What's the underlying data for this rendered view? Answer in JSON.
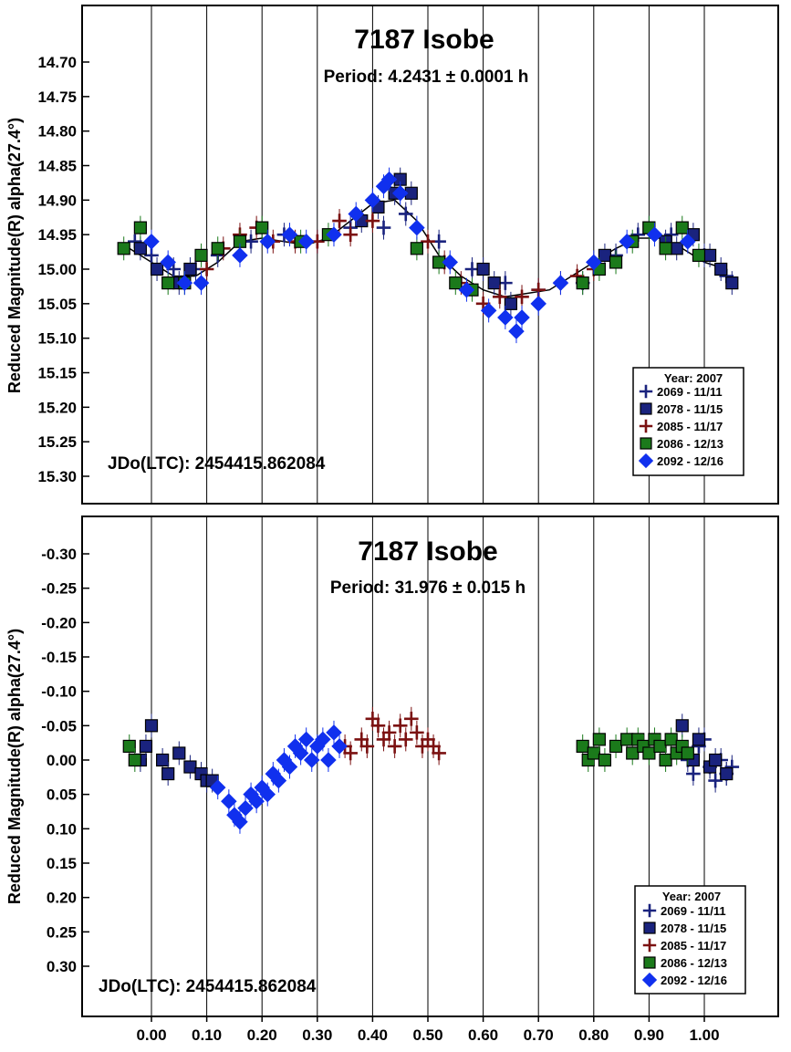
{
  "chart_data": [
    {
      "type": "scatter",
      "title": "7187 Isobe",
      "subtitle": "Period: 4.2431 ± 0.0001 h",
      "ylabel": "Reduced Magnitude(R) alpha(27.4°)",
      "xlabel": "",
      "ylim": [
        14.65,
        15.35
      ],
      "y_inverted": true,
      "y_ticks": [
        "14.70",
        "14.75",
        "14.80",
        "14.85",
        "14.90",
        "14.95",
        "15.00",
        "15.05",
        "15.10",
        "15.15",
        "15.20",
        "15.25",
        "15.30"
      ],
      "annotation": "JDo(LTC): 2454415.862084",
      "legend_title": "Year: 2007",
      "legend_position": "bottom-right",
      "curve": {
        "x": [
          -0.04,
          0.0,
          0.04,
          0.08,
          0.12,
          0.16,
          0.2,
          0.24,
          0.28,
          0.32,
          0.36,
          0.4,
          0.44,
          0.48,
          0.52,
          0.56,
          0.6,
          0.64,
          0.68,
          0.72,
          0.76,
          0.8,
          0.84,
          0.88,
          0.92,
          0.96,
          1.0,
          1.04
        ],
        "y": [
          14.97,
          14.99,
          15.01,
          15.01,
          14.99,
          14.96,
          14.955,
          14.96,
          14.965,
          14.955,
          14.93,
          14.905,
          14.9,
          14.93,
          14.98,
          15.01,
          15.03,
          15.04,
          15.035,
          15.03,
          15.01,
          14.99,
          14.97,
          14.955,
          14.955,
          14.97,
          14.99,
          15.0
        ]
      },
      "series": [
        {
          "name": "2069 - 11/11",
          "marker": "plus",
          "color": "#1a237e",
          "x": [
            -0.03,
            0.0,
            0.04,
            0.08,
            0.12,
            0.18,
            0.24,
            0.3,
            0.36,
            0.42,
            0.46,
            0.52,
            0.58,
            0.64,
            0.7,
            0.78,
            0.84,
            0.88,
            0.94,
            1.0,
            1.04
          ],
          "y": [
            14.96,
            14.98,
            15.0,
            15.0,
            14.98,
            14.96,
            14.95,
            14.96,
            14.94,
            14.94,
            14.92,
            14.96,
            15.0,
            15.02,
            15.03,
            15.02,
            14.98,
            14.95,
            14.95,
            14.98,
            15.01
          ]
        },
        {
          "name": "2078 - 11/15",
          "marker": "square",
          "color": "#1a237e",
          "x": [
            -0.02,
            0.01,
            0.05,
            0.07,
            0.38,
            0.41,
            0.44,
            0.45,
            0.47,
            0.6,
            0.62,
            0.65,
            0.82,
            0.9,
            0.93,
            0.95,
            0.98,
            1.01,
            1.03,
            1.05
          ],
          "y": [
            14.97,
            15.0,
            15.02,
            15.0,
            14.93,
            14.91,
            14.89,
            14.87,
            14.89,
            15.0,
            15.02,
            15.05,
            14.98,
            14.94,
            14.96,
            14.97,
            14.95,
            14.98,
            15.0,
            15.02
          ]
        },
        {
          "name": "2085 - 11/17",
          "marker": "plus",
          "color": "#7b1111",
          "x": [
            0.1,
            0.13,
            0.16,
            0.19,
            0.22,
            0.26,
            0.3,
            0.34,
            0.36,
            0.4,
            0.5,
            0.53,
            0.56,
            0.6,
            0.63,
            0.67,
            0.7,
            0.74,
            0.77,
            0.8
          ],
          "y": [
            15.0,
            14.97,
            14.95,
            14.94,
            14.96,
            14.96,
            14.96,
            14.93,
            14.95,
            14.93,
            14.96,
            14.99,
            15.02,
            15.05,
            15.04,
            15.04,
            15.03,
            15.02,
            15.01,
            15.0
          ]
        },
        {
          "name": "2086 - 12/13",
          "marker": "square",
          "color": "#1b7a1b",
          "x": [
            -0.05,
            -0.02,
            0.03,
            0.06,
            0.09,
            0.12,
            0.16,
            0.2,
            0.27,
            0.32,
            0.48,
            0.52,
            0.55,
            0.58,
            0.78,
            0.81,
            0.84,
            0.87,
            0.9,
            0.93,
            0.96,
            0.99
          ],
          "y": [
            14.97,
            14.94,
            15.02,
            15.02,
            14.98,
            14.97,
            14.96,
            14.94,
            14.96,
            14.95,
            14.97,
            14.99,
            15.02,
            15.03,
            15.02,
            15.0,
            14.99,
            14.96,
            14.94,
            14.97,
            14.94,
            14.98
          ]
        },
        {
          "name": "2092 - 12/16",
          "marker": "diamond",
          "color": "#1030ee",
          "x": [
            0.0,
            0.03,
            0.06,
            0.09,
            0.16,
            0.21,
            0.25,
            0.28,
            0.33,
            0.37,
            0.4,
            0.42,
            0.43,
            0.45,
            0.48,
            0.54,
            0.57,
            0.61,
            0.64,
            0.66,
            0.67,
            0.7,
            0.74,
            0.8,
            0.86,
            0.91,
            0.97
          ],
          "y": [
            14.96,
            14.99,
            15.02,
            15.02,
            14.98,
            14.96,
            14.95,
            14.96,
            14.95,
            14.92,
            14.9,
            14.88,
            14.87,
            14.89,
            14.94,
            14.99,
            15.03,
            15.06,
            15.07,
            15.09,
            15.07,
            15.05,
            15.02,
            14.99,
            14.96,
            14.95,
            14.96
          ]
        }
      ]
    },
    {
      "type": "scatter",
      "title": "7187 Isobe",
      "subtitle": "Period: 31.976 ± 0.015 h",
      "ylabel": "Reduced Magnitude(R) alpha(27.4°)",
      "xlabel": "",
      "ylim": [
        -0.35,
        0.35
      ],
      "y_inverted": true,
      "y_ticks": [
        "-0.30",
        "-0.25",
        "-0.20",
        "-0.15",
        "-0.10",
        "-0.05",
        "0.00",
        "0.05",
        "0.10",
        "0.15",
        "0.20",
        "0.25",
        "0.30"
      ],
      "annotation": "JDo(LTC): 2454415.862084",
      "legend_title": "Year: 2007",
      "legend_position": "bottom-right",
      "x_ticks": [
        "0.00",
        "0.10",
        "0.20",
        "0.30",
        "0.40",
        "0.50",
        "0.60",
        "0.70",
        "0.80",
        "0.90",
        "1.00"
      ],
      "xlim": [
        -0.08,
        1.1
      ],
      "series": [
        {
          "name": "2069 - 11/11",
          "marker": "plus",
          "color": "#1a237e",
          "x": [
            0.97,
            0.99,
            1.01,
            1.02,
            1.03,
            1.04,
            1.05,
            1.0,
            0.98
          ],
          "y": [
            0.0,
            -0.02,
            0.01,
            0.03,
            0.0,
            0.02,
            0.01,
            -0.03,
            0.02
          ]
        },
        {
          "name": "2078 - 11/15",
          "marker": "square",
          "color": "#1a237e",
          "x": [
            -0.02,
            -0.01,
            0.0,
            0.02,
            0.03,
            0.05,
            0.07,
            0.09,
            0.1,
            0.11,
            0.96,
            0.98,
            0.99,
            1.01,
            1.02,
            1.04
          ],
          "y": [
            0.0,
            -0.02,
            -0.05,
            0.0,
            0.02,
            -0.01,
            0.01,
            0.02,
            0.03,
            0.03,
            -0.05,
            0.0,
            -0.03,
            0.01,
            0.0,
            0.02
          ]
        },
        {
          "name": "2085 - 11/17",
          "marker": "plus",
          "color": "#7b1111",
          "x": [
            0.35,
            0.36,
            0.38,
            0.39,
            0.4,
            0.41,
            0.42,
            0.43,
            0.44,
            0.45,
            0.46,
            0.47,
            0.48,
            0.49,
            0.5,
            0.51,
            0.52
          ],
          "y": [
            -0.02,
            -0.01,
            -0.03,
            -0.02,
            -0.06,
            -0.05,
            -0.03,
            -0.04,
            -0.02,
            -0.05,
            -0.03,
            -0.06,
            -0.04,
            -0.02,
            -0.03,
            -0.02,
            -0.01
          ]
        },
        {
          "name": "2086 - 12/13",
          "marker": "square",
          "color": "#1b7a1b",
          "x": [
            -0.04,
            -0.03,
            0.78,
            0.79,
            0.8,
            0.81,
            0.82,
            0.84,
            0.86,
            0.87,
            0.88,
            0.89,
            0.9,
            0.91,
            0.92,
            0.93,
            0.94,
            0.95,
            0.96,
            0.97
          ],
          "y": [
            -0.02,
            0.0,
            -0.02,
            0.0,
            -0.01,
            -0.03,
            0.0,
            -0.02,
            -0.03,
            -0.01,
            -0.03,
            -0.02,
            -0.01,
            -0.03,
            -0.02,
            0.0,
            -0.03,
            -0.01,
            -0.02,
            -0.01
          ]
        },
        {
          "name": "2092 - 12/16",
          "marker": "diamond",
          "color": "#1030ee",
          "x": [
            0.12,
            0.14,
            0.15,
            0.16,
            0.17,
            0.18,
            0.19,
            0.2,
            0.21,
            0.22,
            0.23,
            0.24,
            0.25,
            0.26,
            0.27,
            0.28,
            0.29,
            0.3,
            0.31,
            0.32,
            0.33,
            0.34
          ],
          "y": [
            0.04,
            0.06,
            0.08,
            0.09,
            0.07,
            0.05,
            0.06,
            0.04,
            0.05,
            0.02,
            0.03,
            0.0,
            0.01,
            -0.02,
            -0.01,
            -0.03,
            0.0,
            -0.02,
            -0.03,
            0.0,
            -0.04,
            -0.02
          ]
        }
      ]
    }
  ]
}
